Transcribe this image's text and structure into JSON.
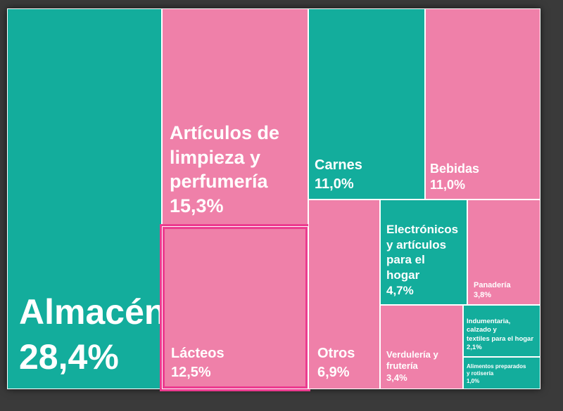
{
  "colors": {
    "teal": "#13ad9c",
    "pink": "#ef80a9",
    "highlight": "#ec3b8f"
  },
  "chart_data": {
    "type": "treemap",
    "items": [
      {
        "name": "Almacén",
        "value": 28.4,
        "value_label": "28,4%",
        "color": "teal"
      },
      {
        "name": "Artículos de limpieza y perfumería",
        "value": 15.3,
        "value_label": "15,3%",
        "color": "pink"
      },
      {
        "name": "Lácteos",
        "value": 12.5,
        "value_label": "12,5%",
        "color": "pink",
        "highlighted": true
      },
      {
        "name": "Carnes",
        "value": 11.0,
        "value_label": "11,0%",
        "color": "teal"
      },
      {
        "name": "Bebidas",
        "value": 11.0,
        "value_label": "11,0%",
        "color": "pink"
      },
      {
        "name": "Otros",
        "value": 6.9,
        "value_label": "6,9%",
        "color": "pink"
      },
      {
        "name": "Electrónicos y artículos para el hogar",
        "value": 4.7,
        "value_label": "4,7%",
        "color": "teal"
      },
      {
        "name": "Panadería",
        "value": 3.8,
        "value_label": "3,8%",
        "color": "pink"
      },
      {
        "name": "Verdulería y frutería",
        "value": 3.4,
        "value_label": "3,4%",
        "color": "pink"
      },
      {
        "name": "Indumentaria, calzado y textiles para el hogar",
        "value": 2.1,
        "value_label": "2,1%",
        "color": "teal"
      },
      {
        "name": "Alimentos preparados y rotisería",
        "value": 1.0,
        "value_label": "1,0%",
        "color": "teal"
      }
    ]
  }
}
